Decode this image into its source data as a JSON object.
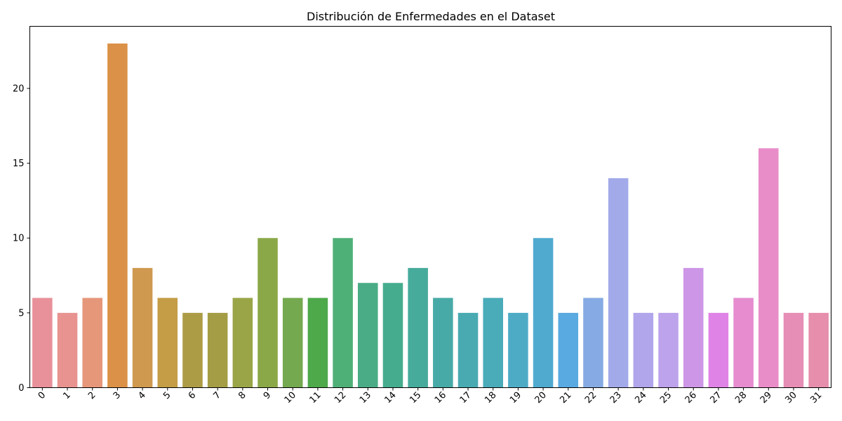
{
  "chart_data": {
    "type": "bar",
    "title": "Distribución de Enfermedades en el Dataset",
    "xlabel": "",
    "ylabel": "",
    "categories": [
      "0",
      "1",
      "2",
      "3",
      "4",
      "5",
      "6",
      "7",
      "8",
      "9",
      "10",
      "11",
      "12",
      "13",
      "14",
      "15",
      "16",
      "17",
      "18",
      "19",
      "20",
      "21",
      "22",
      "23",
      "24",
      "25",
      "26",
      "27",
      "28",
      "29",
      "30",
      "31"
    ],
    "values": [
      6,
      5,
      6,
      23,
      8,
      6,
      5,
      5,
      6,
      10,
      6,
      6,
      10,
      7,
      7,
      8,
      6,
      5,
      6,
      5,
      10,
      5,
      6,
      14,
      5,
      5,
      8,
      5,
      6,
      16,
      5,
      5
    ],
    "colors": [
      "#e8919a",
      "#e89390",
      "#e6977a",
      "#db9147",
      "#cf9950",
      "#c49d46",
      "#ad9c46",
      "#a59d45",
      "#9aa548",
      "#8ba849",
      "#74a94f",
      "#4da94a",
      "#4fb077",
      "#4aac86",
      "#46ac8e",
      "#46ab9b",
      "#48aaa6",
      "#49aab2",
      "#4aabb9",
      "#4dabc6",
      "#50aad0",
      "#59aae0",
      "#86abe4",
      "#a3aaea",
      "#b1a5eb",
      "#bda2ec",
      "#cd96e7",
      "#e083e6",
      "#e68ccf",
      "#e98dc9",
      "#e68eb5",
      "#e68eab"
    ],
    "ylim": [
      0,
      24.15
    ],
    "yticks": [
      0,
      5,
      10,
      15,
      20
    ],
    "grid": false,
    "legend": "none"
  }
}
